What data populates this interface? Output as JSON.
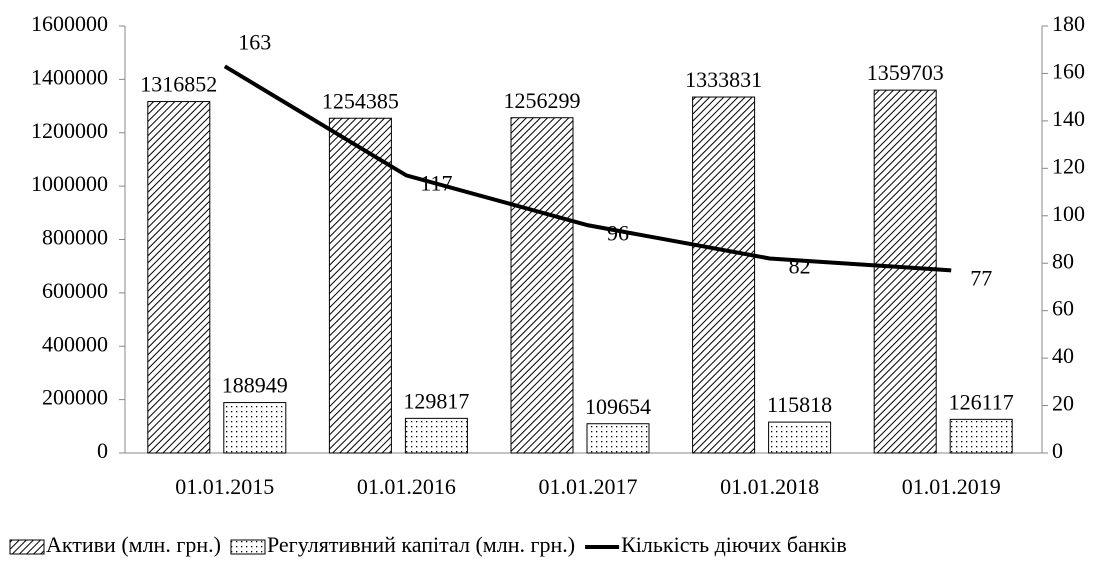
{
  "chart_data": {
    "type": "bar_line",
    "categories": [
      "01.01.2015",
      "01.01.2016",
      "01.01.2017",
      "01.01.2018",
      "01.01.2019"
    ],
    "series": [
      {
        "name": "Активи (млн. грн.)",
        "color": "#000000",
        "pattern": "hatch",
        "values": [
          1316852,
          1254385,
          1256299,
          1333831,
          1359703
        ]
      },
      {
        "name": "Регулятивний капітал (млн. грн.)",
        "color": "#000000",
        "pattern": "dots",
        "values": [
          188949,
          129817,
          109654,
          115818,
          126117
        ]
      },
      {
        "name": "Кількість діючих банків",
        "color": "#000000",
        "type": "line",
        "axis": "y2",
        "values": [
          163,
          117,
          96,
          82,
          77
        ]
      }
    ],
    "ylim": [
      0,
      1600000
    ],
    "yticks": [
      0,
      200000,
      400000,
      600000,
      800000,
      1000000,
      1200000,
      1400000,
      1600000
    ],
    "y2lim": [
      0,
      180
    ],
    "y2ticks": [
      0,
      20,
      40,
      60,
      80,
      100,
      120,
      140,
      160,
      180
    ],
    "grid": false,
    "legend": "bottom"
  }
}
